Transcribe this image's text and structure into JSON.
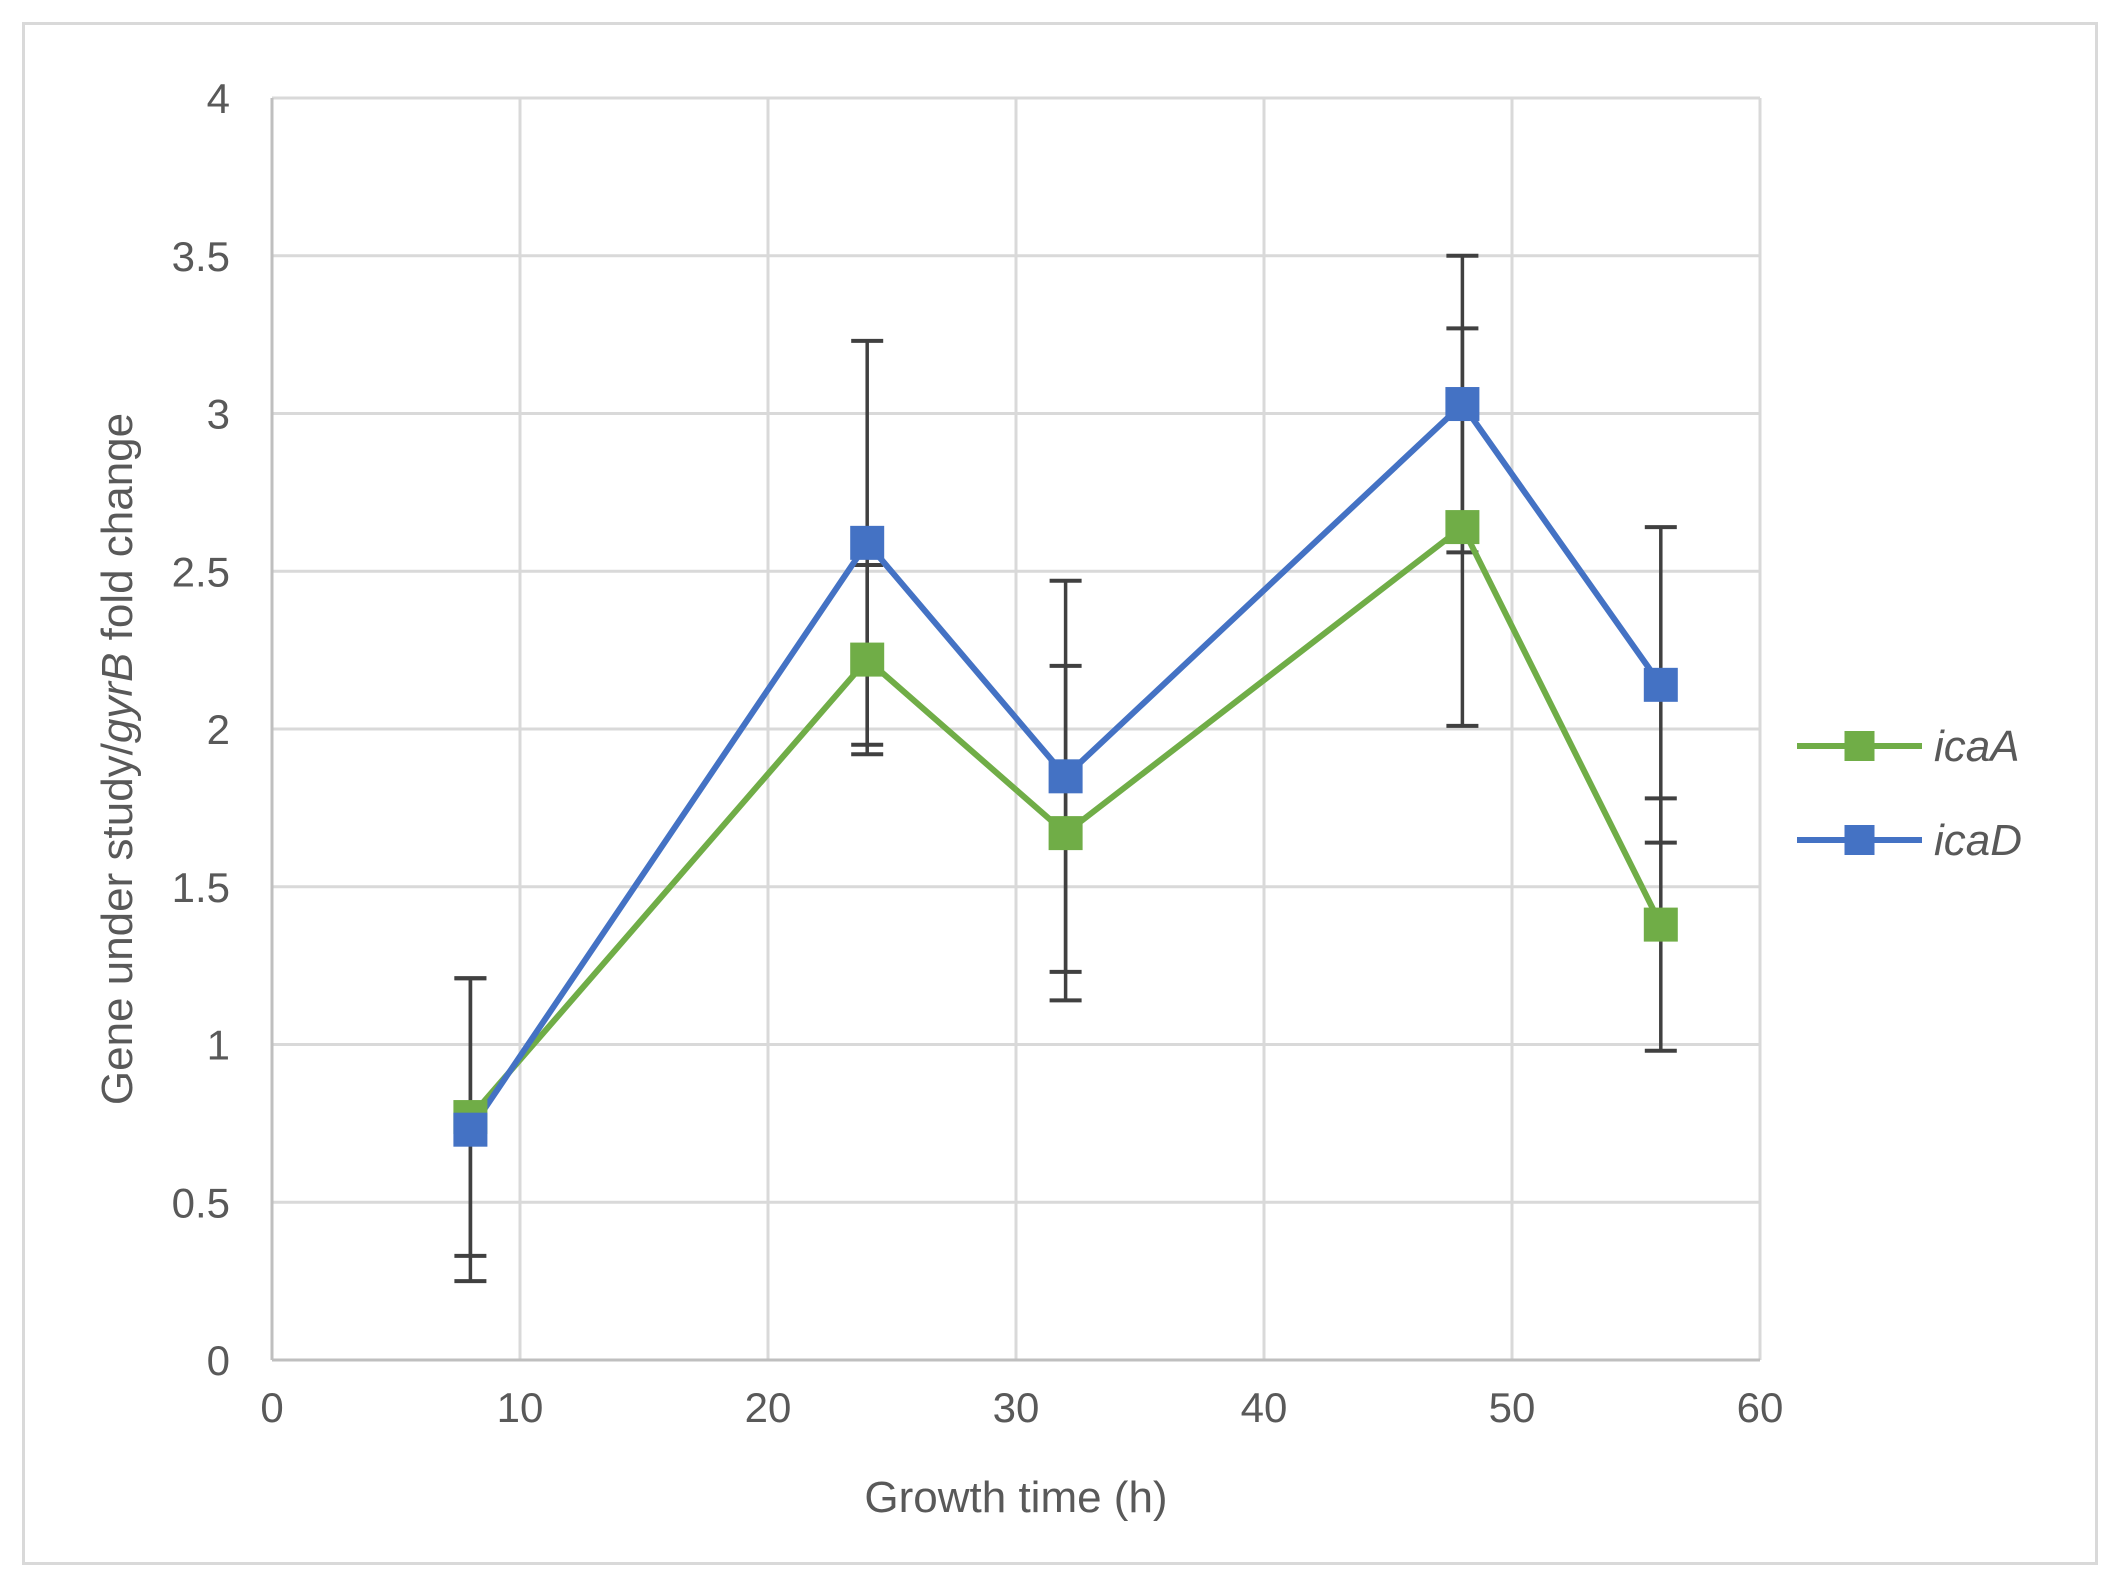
{
  "chart_data": {
    "type": "line",
    "title": "",
    "xlabel": "Growth time (h)",
    "ylabel": {
      "pre": "Gene under study/",
      "italic": "gyrB",
      "post": " fold change"
    },
    "xlim": [
      0,
      60
    ],
    "ylim": [
      0,
      4
    ],
    "x_ticks": [
      0,
      10,
      20,
      30,
      40,
      50,
      60
    ],
    "x_tick_labels": [
      "0",
      "10",
      "20",
      "30",
      "40",
      "50",
      "60"
    ],
    "y_ticks": [
      0,
      0.5,
      1,
      1.5,
      2,
      2.5,
      3,
      3.5,
      4
    ],
    "y_tick_labels": [
      "0",
      "0.5",
      "1",
      "1.5",
      "2",
      "2.5",
      "3",
      "3.5",
      "4"
    ],
    "grid": true,
    "legend_position": "right",
    "x": [
      8,
      24,
      32,
      48,
      56
    ],
    "series": [
      {
        "name": "icaA",
        "color": "#70ad47",
        "values": [
          0.77,
          2.22,
          1.67,
          2.64,
          1.38
        ],
        "error": [
          0.44,
          0.3,
          0.53,
          0.63,
          0.4
        ]
      },
      {
        "name": "icaD",
        "color": "#4472c4",
        "values": [
          0.73,
          2.59,
          1.85,
          3.03,
          2.14
        ],
        "error": [
          0.48,
          0.64,
          0.62,
          0.47,
          0.5
        ]
      }
    ],
    "error_bar_color": "#404040",
    "grid_color": "#d9d9d9"
  }
}
